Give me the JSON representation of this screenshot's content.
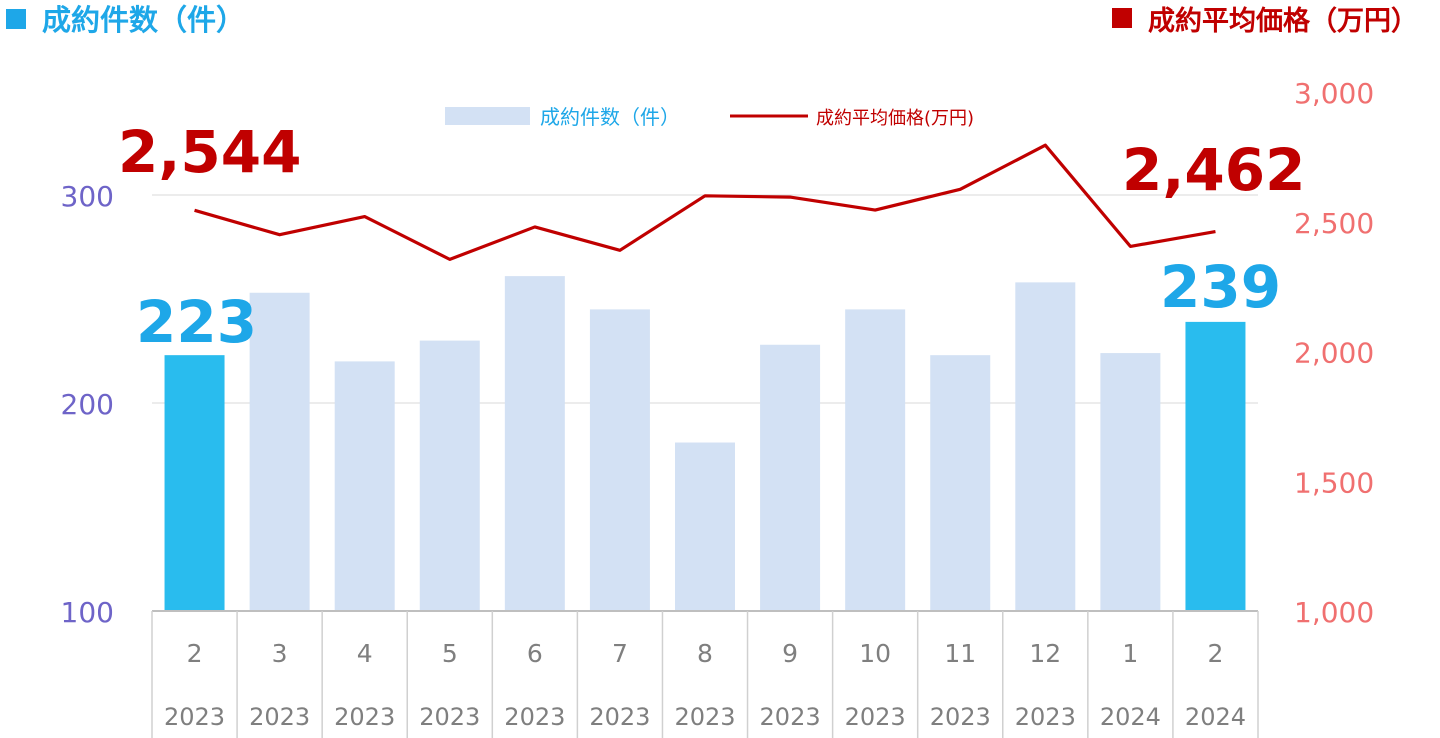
{
  "header": {
    "left_label": "成約件数（件）",
    "right_label": "成約平均価格（万円）",
    "left_color": "#1ea7e8",
    "right_color": "#c00000"
  },
  "legend": {
    "bar_label": "成約件数（件）",
    "line_label": "成約平均価格(万円)"
  },
  "colors": {
    "bar_normal": "#d3e1f4",
    "bar_highlight": "#29bcee",
    "line": "#c00000",
    "left_axis": "#6e64c8",
    "right_axis": "#f07070",
    "grid": "#d9d9d9",
    "callout_price": "#c00000",
    "callout_count": "#1ea7e8"
  },
  "callouts": {
    "first_price": "2,544",
    "last_price": "2,462",
    "first_count": "223",
    "last_count": "239"
  },
  "chart_data": {
    "type": "bar",
    "categories": [
      {
        "month": "2",
        "year": "2023"
      },
      {
        "month": "3",
        "year": "2023"
      },
      {
        "month": "4",
        "year": "2023"
      },
      {
        "month": "5",
        "year": "2023"
      },
      {
        "month": "6",
        "year": "2023"
      },
      {
        "month": "7",
        "year": "2023"
      },
      {
        "month": "8",
        "year": "2023"
      },
      {
        "month": "9",
        "year": "2023"
      },
      {
        "month": "10",
        "year": "2023"
      },
      {
        "month": "11",
        "year": "2023"
      },
      {
        "month": "12",
        "year": "2023"
      },
      {
        "month": "1",
        "year": "2024"
      },
      {
        "month": "2",
        "year": "2024"
      }
    ],
    "series": [
      {
        "name": "成約件数（件）",
        "type": "bar",
        "axis": "left",
        "values": [
          223,
          253,
          220,
          230,
          261,
          245,
          181,
          228,
          245,
          223,
          258,
          224,
          239
        ],
        "highlight": [
          true,
          false,
          false,
          false,
          false,
          false,
          false,
          false,
          false,
          false,
          false,
          false,
          true
        ]
      },
      {
        "name": "成約平均価格(万円)",
        "type": "line",
        "axis": "right",
        "values": [
          2544,
          2450,
          2520,
          2355,
          2480,
          2390,
          2600,
          2595,
          2545,
          2625,
          2795,
          2405,
          2462
        ]
      }
    ],
    "left_axis": {
      "min": 100,
      "max": 300,
      "ticks": [
        "100",
        "200",
        "300"
      ],
      "tick_values": [
        100,
        200,
        300
      ],
      "top_value": 340
    },
    "right_axis": {
      "min": 1000,
      "max": 3000,
      "ticks": [
        "1,000",
        "1,500",
        "2,000",
        "2,500",
        "3,000"
      ],
      "tick_values": [
        1000,
        1500,
        2000,
        2500,
        3000
      ]
    },
    "grid": true,
    "legend_position": "top-center"
  }
}
